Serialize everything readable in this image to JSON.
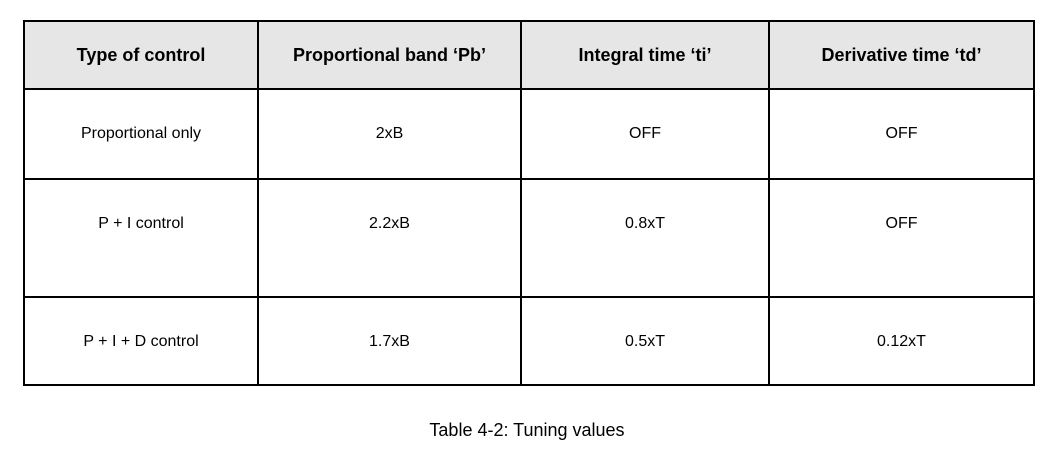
{
  "table": {
    "header": [
      "Type of control",
      "Proportional band ‘Pb’",
      "Integral time ‘ti’",
      "Derivative time ‘td’"
    ],
    "rows": [
      [
        "Proportional only",
        "2xB",
        "OFF",
        "OFF"
      ],
      [
        "P + I control",
        "2.2xB",
        "0.8xT",
        "OFF"
      ],
      [
        "P + I + D control",
        "1.7xB",
        "0.5xT",
        "0.12xT"
      ]
    ]
  },
  "caption": "Table 4-2:  Tuning values"
}
